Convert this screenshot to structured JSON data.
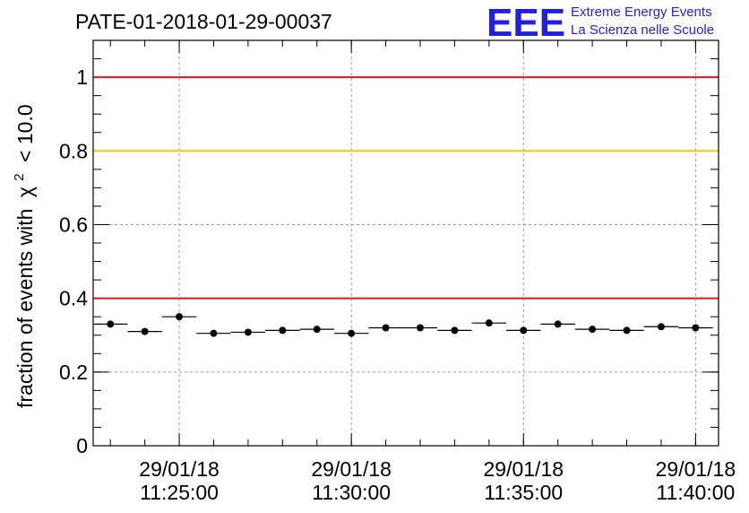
{
  "chart_data": {
    "type": "scatter",
    "title": "PATE-01-2018-01-29-00037",
    "ylabel": "fraction of events with",
    "ylabel_symbol": "χ",
    "ylabel_sup": "2",
    "ylabel_tail": "< 10.0",
    "xlabel": "",
    "xlim": [
      "2018-01-29 11:22:30",
      "2018-01-29 11:40:40"
    ],
    "ylim": [
      0,
      1.1
    ],
    "yticks": [
      {
        "value": 0,
        "label": "0"
      },
      {
        "value": 0.2,
        "label": "0.2"
      },
      {
        "value": 0.4,
        "label": "0.4"
      },
      {
        "value": 0.6,
        "label": "0.6"
      },
      {
        "value": 0.8,
        "label": "0.8"
      },
      {
        "value": 1.0,
        "label": "1"
      }
    ],
    "xticks": [
      {
        "value": "2018-01-29 11:25:00",
        "date": "29/01/18",
        "time": "11:25:00"
      },
      {
        "value": "2018-01-29 11:30:00",
        "date": "29/01/18",
        "time": "11:30:00"
      },
      {
        "value": "2018-01-29 11:35:00",
        "date": "29/01/18",
        "time": "11:35:00"
      },
      {
        "value": "2018-01-29 11:40:00",
        "date": "29/01/18",
        "time": "11:40:00"
      }
    ],
    "bin_seconds": 60,
    "grid": true,
    "reference_lines": [
      {
        "y": 1.0,
        "color": "#e8141e"
      },
      {
        "y": 0.8,
        "color": "#ffc400"
      },
      {
        "y": 0.4,
        "color": "#e8141e"
      }
    ],
    "series": [
      {
        "marker_color": "#000000",
        "x": [
          "2018-01-29 11:23:00",
          "2018-01-29 11:24:00",
          "2018-01-29 11:25:00",
          "2018-01-29 11:26:00",
          "2018-01-29 11:27:00",
          "2018-01-29 11:28:00",
          "2018-01-29 11:29:00",
          "2018-01-29 11:30:00",
          "2018-01-29 11:31:00",
          "2018-01-29 11:32:00",
          "2018-01-29 11:33:00",
          "2018-01-29 11:34:00",
          "2018-01-29 11:35:00",
          "2018-01-29 11:36:00",
          "2018-01-29 11:37:00",
          "2018-01-29 11:38:00",
          "2018-01-29 11:39:00",
          "2018-01-29 11:40:00"
        ],
        "values": [
          0.33,
          0.31,
          0.35,
          0.305,
          0.308,
          0.313,
          0.316,
          0.305,
          0.32,
          0.32,
          0.313,
          0.333,
          0.313,
          0.33,
          0.316,
          0.313,
          0.323,
          0.32
        ]
      }
    ]
  },
  "logo": {
    "mark": "EEE",
    "line1": "Extreme Energy Events",
    "line2": "La Scienza nelle Scuole"
  },
  "colors": {
    "logo": "#1f1fe8",
    "grid": "#9a9a9a",
    "axis": "#000000"
  }
}
